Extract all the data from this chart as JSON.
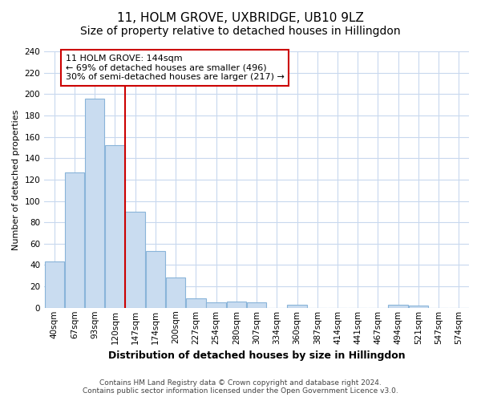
{
  "title": "11, HOLM GROVE, UXBRIDGE, UB10 9LZ",
  "subtitle": "Size of property relative to detached houses in Hillingdon",
  "xlabel": "Distribution of detached houses by size in Hillingdon",
  "ylabel": "Number of detached properties",
  "bar_labels": [
    "40sqm",
    "67sqm",
    "93sqm",
    "120sqm",
    "147sqm",
    "174sqm",
    "200sqm",
    "227sqm",
    "254sqm",
    "280sqm",
    "307sqm",
    "334sqm",
    "360sqm",
    "387sqm",
    "414sqm",
    "441sqm",
    "467sqm",
    "494sqm",
    "521sqm",
    "547sqm",
    "574sqm"
  ],
  "bar_values": [
    43,
    127,
    196,
    152,
    90,
    53,
    28,
    9,
    5,
    6,
    5,
    0,
    3,
    0,
    0,
    0,
    0,
    3,
    2,
    0,
    0
  ],
  "bar_color": "#c9dcf0",
  "bar_edge_color": "#89b4d9",
  "vline_color": "#cc0000",
  "vline_position": 3.5,
  "annotation_title": "11 HOLM GROVE: 144sqm",
  "annotation_line1": "← 69% of detached houses are smaller (496)",
  "annotation_line2": "30% of semi-detached houses are larger (217) →",
  "annotation_box_color": "#ffffff",
  "annotation_box_edge": "#cc0000",
  "ylim": [
    0,
    240
  ],
  "yticks": [
    0,
    20,
    40,
    60,
    80,
    100,
    120,
    140,
    160,
    180,
    200,
    220,
    240
  ],
  "footnote1": "Contains HM Land Registry data © Crown copyright and database right 2024.",
  "footnote2": "Contains public sector information licensed under the Open Government Licence v3.0.",
  "fig_bg_color": "#ffffff",
  "plot_bg_color": "#ffffff",
  "grid_color": "#c8d8ee",
  "title_fontsize": 11,
  "subtitle_fontsize": 10,
  "ylabel_fontsize": 8,
  "xlabel_fontsize": 9,
  "tick_fontsize": 7.5,
  "annotation_fontsize": 8
}
